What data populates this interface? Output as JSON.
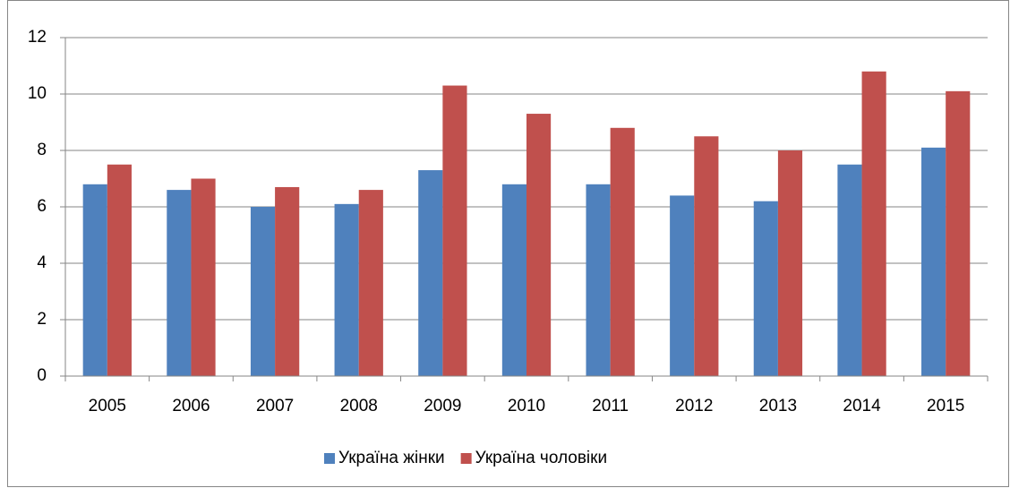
{
  "chart_data": {
    "type": "bar",
    "categories": [
      "2005",
      "2006",
      "2007",
      "2008",
      "2009",
      "2010",
      "2011",
      "2012",
      "2013",
      "2014",
      "2015"
    ],
    "series": [
      {
        "name": "Україна жінки",
        "color": "#4f81bd",
        "values": [
          6.8,
          6.6,
          6.0,
          6.1,
          7.3,
          6.8,
          6.8,
          6.4,
          6.2,
          7.5,
          8.1
        ]
      },
      {
        "name": "Україна чоловіки",
        "color": "#c0504d",
        "values": [
          7.5,
          7.0,
          6.7,
          6.6,
          10.3,
          9.3,
          8.8,
          8.5,
          8.0,
          10.8,
          10.1
        ]
      }
    ],
    "ylim": [
      0,
      12
    ],
    "yticks": [
      0,
      2,
      4,
      6,
      8,
      10,
      12
    ],
    "grid": true,
    "legend": "bottom"
  }
}
